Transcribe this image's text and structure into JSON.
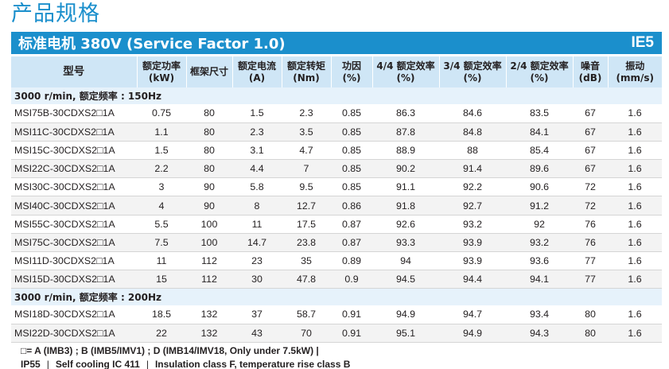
{
  "page_title": "产品规格",
  "banner": {
    "title": "标准电机 380V (Service Factor 1.0)",
    "grade": "IE5"
  },
  "columns": [
    [
      "型号"
    ],
    [
      "额定功率",
      "(kW)"
    ],
    [
      "框架尺寸"
    ],
    [
      "额定电流",
      "(A)"
    ],
    [
      "额定转矩",
      "(Nm)"
    ],
    [
      "功因",
      "(%)"
    ],
    [
      "4/4 额定效率",
      "(%)"
    ],
    [
      "3/4 额定效率",
      "(%)"
    ],
    [
      "2/4 额定效率",
      "(%)"
    ],
    [
      "噪音",
      "(dB)"
    ],
    [
      "振动",
      "(mm/s)"
    ]
  ],
  "sections": [
    {
      "label": "3000 r/min, 额定频率 : 150Hz",
      "rows": [
        [
          "MSI75B-30CDXS2□1A",
          "0.75",
          "80",
          "1.5",
          "2.3",
          "0.85",
          "86.3",
          "84.6",
          "83.5",
          "67",
          "1.6"
        ],
        [
          "MSI11C-30CDXS2□1A",
          "1.1",
          "80",
          "2.3",
          "3.5",
          "0.85",
          "87.8",
          "84.8",
          "84.1",
          "67",
          "1.6"
        ],
        [
          "MSI15C-30CDXS2□1A",
          "1.5",
          "80",
          "3.1",
          "4.7",
          "0.85",
          "88.9",
          "88",
          "85.4",
          "67",
          "1.6"
        ],
        [
          "MSI22C-30CDXS2□1A",
          "2.2",
          "80",
          "4.4",
          "7",
          "0.85",
          "90.2",
          "91.4",
          "89.6",
          "67",
          "1.6"
        ],
        [
          "MSI30C-30CDXS2□1A",
          "3",
          "90",
          "5.8",
          "9.5",
          "0.85",
          "91.1",
          "92.2",
          "90.6",
          "72",
          "1.6"
        ],
        [
          "MSI40C-30CDXS2□1A",
          "4",
          "90",
          "8",
          "12.7",
          "0.86",
          "91.8",
          "92.7",
          "91.2",
          "72",
          "1.6"
        ],
        [
          "MSI55C-30CDXS2□1A",
          "5.5",
          "100",
          "11",
          "17.5",
          "0.87",
          "92.6",
          "93.2",
          "92",
          "76",
          "1.6"
        ],
        [
          "MSI75C-30CDXS2□1A",
          "7.5",
          "100",
          "14.7",
          "23.8",
          "0.87",
          "93.3",
          "93.9",
          "93.2",
          "76",
          "1.6"
        ],
        [
          "MSI11D-30CDXS2□1A",
          "11",
          "112",
          "23",
          "35",
          "0.89",
          "94",
          "93.9",
          "93.6",
          "77",
          "1.6"
        ],
        [
          "MSI15D-30CDXS2□1A",
          "15",
          "112",
          "30",
          "47.8",
          "0.9",
          "94.5",
          "94.4",
          "94.1",
          "77",
          "1.6"
        ]
      ]
    },
    {
      "label": "3000 r/min, 额定频率 : 200Hz",
      "rows": [
        [
          "MSI18D-30CDXS2□1A",
          "18.5",
          "132",
          "37",
          "58.7",
          "0.91",
          "94.9",
          "94.7",
          "93.4",
          "80",
          "1.6"
        ],
        [
          "MSI22D-30CDXS2□1A",
          "22",
          "132",
          "43",
          "70",
          "0.91",
          "95.1",
          "94.9",
          "94.3",
          "80",
          "1.6"
        ]
      ]
    }
  ],
  "footnotes": {
    "line1": "□= A (IMB3) ; B (IMB5/IMV1) ; D (IMB14/IMV18, Only under 7.5kW)  |",
    "line2_parts": [
      "IP55",
      "Self cooling IC 411",
      "Insulation class F, temperature rise class B"
    ],
    "separator": "|"
  }
}
